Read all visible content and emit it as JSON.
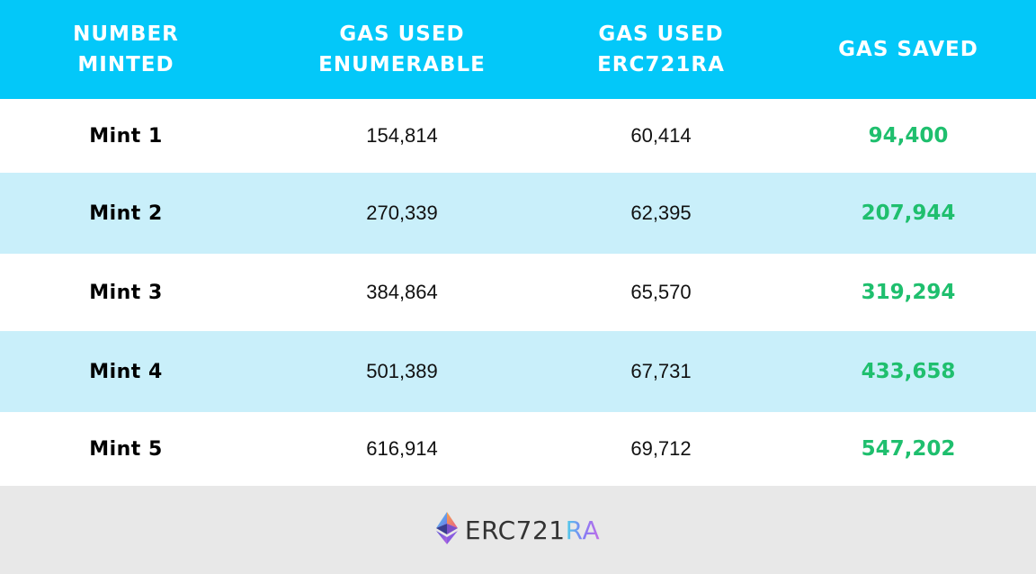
{
  "chart_data": {
    "type": "table",
    "columns": [
      "NUMBER\nMINTED",
      "GAS USED\nENUMERABLE",
      "GAS USED\nERC721RA",
      "GAS SAVED"
    ],
    "rows": [
      {
        "label": "Mint 1",
        "enumerable": "154,814",
        "erc721ra": "60,414",
        "saved": "94,400"
      },
      {
        "label": "Mint 2",
        "enumerable": "270,339",
        "erc721ra": "62,395",
        "saved": "207,944"
      },
      {
        "label": "Mint 3",
        "enumerable": "384,864",
        "erc721ra": "65,570",
        "saved": "319,294"
      },
      {
        "label": "Mint 4",
        "enumerable": "501,389",
        "erc721ra": "67,731",
        "saved": "433,658"
      },
      {
        "label": "Mint 5",
        "enumerable": "616,914",
        "erc721ra": "69,712",
        "saved": "547,202"
      }
    ]
  },
  "footer": {
    "logo_text_main": "ERC721",
    "logo_text_accent": "RA"
  },
  "colors": {
    "header_bg": "#03c8f9",
    "alt_row_bg": "#c9effa",
    "saved_text": "#1fbf6e",
    "footer_bg": "#e8e8e8"
  },
  "icons": {
    "logo": "ethereum-diamond-icon"
  }
}
